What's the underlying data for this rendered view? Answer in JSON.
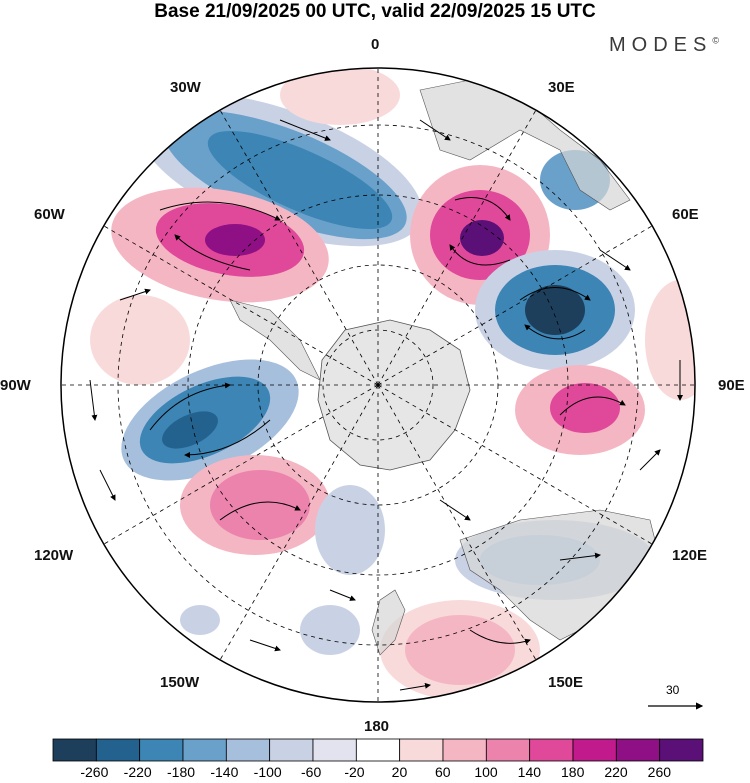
{
  "title": "Base 21/09/2025 00 UTC, valid 22/09/2025 15 UTC",
  "brand": {
    "name": "MODES",
    "mark": "©"
  },
  "map": {
    "projection": "south-polar-stereographic",
    "longitude_labels": {
      "lon_0": "0",
      "lon_30e": "30E",
      "lon_60e": "60E",
      "lon_90e": "90E",
      "lon_120e": "120E",
      "lon_150e": "150E",
      "lon_180": "180",
      "lon_150w": "150W",
      "lon_120w": "120W",
      "lon_90w": "90W",
      "lon_60w": "60W",
      "lon_30w": "30W"
    },
    "reference_vector": "30"
  },
  "colorbar": {
    "ticks": [
      "-260",
      "-220",
      "-180",
      "-140",
      "-100",
      "-60",
      "-20",
      "20",
      "60",
      "100",
      "140",
      "180",
      "220",
      "260"
    ],
    "colors": [
      "#1e3f5c",
      "#23628f",
      "#3c85b5",
      "#6aa1cb",
      "#a6bfdc",
      "#c9d2e5",
      "#e3e3ef",
      "#ffffff",
      "#f9dada",
      "#f5b6c4",
      "#ec83ad",
      "#e0489a",
      "#c01a8c",
      "#8f0f84",
      "#5a1077"
    ]
  },
  "colors": {
    "land": "#d6d6d6",
    "antarctica": "#e6e6e6",
    "grid": "#000000"
  }
}
